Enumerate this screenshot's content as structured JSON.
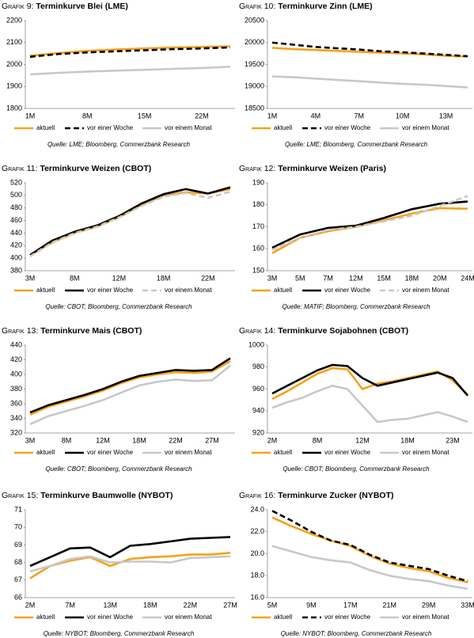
{
  "chart_data": [
    {
      "type": "line",
      "label": "Grafik 9:",
      "title": "Terminkurve Blei (LME)",
      "source": "Quelle: LME; Bloomberg, Commerzbank Research",
      "categories": [
        "1M",
        null,
        "8M",
        null,
        "15M",
        null,
        "22M",
        null
      ],
      "ylim": [
        1800,
        2200
      ],
      "yticks": [
        1800,
        1900,
        2000,
        2100,
        2200
      ],
      "grid": false,
      "series": [
        {
          "name": "aktuell",
          "color": "#f7a11a",
          "dashed": false,
          "values": [
            2040,
            2052,
            2062,
            2068,
            2073,
            2077,
            2080,
            2083
          ]
        },
        {
          "name": "vor einer Woche",
          "color": "#000000",
          "dashed": true,
          "values": [
            2035,
            2048,
            2055,
            2060,
            2065,
            2070,
            2073,
            2078
          ]
        },
        {
          "name": "vor einem Monat",
          "color": "#c8c8c8",
          "dashed": false,
          "values": [
            1955,
            1962,
            1968,
            1972,
            1976,
            1980,
            1984,
            1990
          ]
        }
      ]
    },
    {
      "type": "line",
      "label": "Grafik 10:",
      "title": "Terminkurve Zinn (LME)",
      "source": "Quelle: LME; Bloomberg, Commerzbank Research",
      "categories": [
        "1M",
        null,
        "4M",
        null,
        "7M",
        null,
        "10M",
        null,
        "13M",
        null
      ],
      "ylim": [
        18500,
        20500
      ],
      "yticks": [
        18500,
        19000,
        19500,
        20000,
        20500
      ],
      "grid": false,
      "series": [
        {
          "name": "aktuell",
          "color": "#f7a11a",
          "dashed": false,
          "values": [
            19880,
            19850,
            19830,
            19810,
            19790,
            19770,
            19750,
            19730,
            19700,
            19680
          ]
        },
        {
          "name": "vor einer Woche",
          "color": "#000000",
          "dashed": true,
          "values": [
            20000,
            19950,
            19900,
            19870,
            19840,
            19800,
            19780,
            19750,
            19720,
            19690
          ]
        },
        {
          "name": "vor einem Monat",
          "color": "#c8c8c8",
          "dashed": false,
          "values": [
            19230,
            19210,
            19180,
            19150,
            19120,
            19090,
            19060,
            19040,
            19010,
            18980
          ]
        }
      ]
    },
    {
      "type": "line",
      "label": "Grafik 11:",
      "title": "Terminkurve Weizen (CBOT)",
      "source": "Quelle: CBOT; Bloomberg, Commerzbank Research",
      "categories": [
        "3M",
        null,
        "8M",
        null,
        "12M",
        null,
        "18M",
        null,
        "22M",
        null
      ],
      "ylim": [
        380,
        520
      ],
      "yticks": [
        380,
        400,
        420,
        440,
        460,
        480,
        500,
        520
      ],
      "grid": false,
      "series": [
        {
          "name": "aktuell",
          "color": "#f7a11a",
          "dashed": false,
          "values": [
            405,
            425,
            440,
            450,
            465,
            485,
            500,
            505,
            503,
            510
          ]
        },
        {
          "name": "vor einer Woche",
          "color": "#000000",
          "dashed": false,
          "values": [
            405,
            428,
            442,
            452,
            467,
            487,
            502,
            510,
            503,
            513
          ]
        },
        {
          "name": "vor einem Monat",
          "color": "#c8c8c8",
          "dashed": true,
          "values": [
            403,
            425,
            440,
            450,
            465,
            483,
            498,
            504,
            496,
            506
          ]
        }
      ]
    },
    {
      "type": "line",
      "label": "Grafik 12:",
      "title": "Terminkurve Weizen (Paris)",
      "source": "Quelle: MATIF; Bloomberg, Commerzbank Research",
      "categories": [
        "3M",
        "5M",
        "7M",
        "12M",
        "15M",
        "18M",
        "20M",
        "24M"
      ],
      "ylim": [
        150,
        190
      ],
      "yticks": [
        150,
        160,
        170,
        180,
        190
      ],
      "grid": false,
      "series": [
        {
          "name": "aktuell",
          "color": "#f7a11a",
          "dashed": false,
          "values": [
            158,
            165,
            168,
            170,
            173,
            176,
            178.5,
            178.2
          ]
        },
        {
          "name": "vor einer Woche",
          "color": "#000000",
          "dashed": false,
          "values": [
            160.5,
            166.5,
            169.5,
            170.5,
            174,
            178,
            180.5,
            181.5
          ]
        },
        {
          "name": "vor einem Monat",
          "color": "#c8c8c8",
          "dashed": true,
          "values": [
            159.5,
            165,
            168.5,
            170,
            172.5,
            175,
            179.5,
            184
          ]
        }
      ]
    },
    {
      "type": "line",
      "label": "Grafik 13:",
      "title": "Terminkurve Mais (CBOT)",
      "source": "Quelle: CBOT; Bloomberg, Commerzbank Research",
      "categories": [
        "3M",
        null,
        "8M",
        null,
        "12M",
        null,
        "18M",
        null,
        "22M",
        null,
        "27M",
        null
      ],
      "ylim": [
        320,
        440
      ],
      "yticks": [
        320,
        340,
        360,
        380,
        400,
        420,
        440
      ],
      "grid": false,
      "series": [
        {
          "name": "aktuell",
          "color": "#f7a11a",
          "dashed": false,
          "values": [
            345,
            356,
            363,
            370,
            378,
            388,
            396,
            400,
            403,
            402,
            404,
            418
          ]
        },
        {
          "name": "vor einer Woche",
          "color": "#000000",
          "dashed": false,
          "values": [
            348,
            358,
            365,
            372,
            380,
            390,
            398,
            402,
            406,
            405,
            406,
            422
          ]
        },
        {
          "name": "vor einem Monat",
          "color": "#c8c8c8",
          "dashed": false,
          "values": [
            332,
            343,
            350,
            357,
            365,
            375,
            385,
            390,
            393,
            391,
            392,
            412
          ]
        }
      ]
    },
    {
      "type": "line",
      "label": "Grafik 14:",
      "title": "Terminkurve Sojabohnen (CBOT)",
      "source": "Quelle: CBOT; Bloomberg, Commerzbank Research",
      "categories": [
        "2M",
        null,
        null,
        "8M",
        null,
        null,
        "12M",
        null,
        null,
        "18M",
        null,
        null,
        "23M",
        null
      ],
      "ylim": [
        920,
        1000
      ],
      "yticks": [
        920,
        940,
        960,
        980,
        1000
      ],
      "grid": false,
      "series": [
        {
          "name": "aktuell",
          "color": "#f7a11a",
          "dashed": false,
          "values": [
            951,
            958,
            966,
            974,
            979,
            978,
            960,
            965,
            967,
            970,
            973,
            976,
            968,
            955
          ]
        },
        {
          "name": "vor einer Woche",
          "color": "#000000",
          "dashed": false,
          "values": [
            956,
            963,
            970,
            977,
            982,
            981,
            970,
            963,
            966,
            969,
            972,
            975,
            970,
            954
          ]
        },
        {
          "name": "vor einem Monat",
          "color": "#c8c8c8",
          "dashed": false,
          "values": [
            943,
            948,
            952,
            958,
            963,
            960,
            945,
            930,
            932,
            933,
            936,
            939,
            935,
            930
          ]
        }
      ]
    },
    {
      "type": "line",
      "label": "Grafik 15:",
      "title": "Terminkurve Baumwolle (NYBOT)",
      "source": "Quelle: NYBOT; Bloomberg, Commerzbank Research",
      "categories": [
        "2M",
        null,
        "7M",
        null,
        "13M",
        null,
        "18M",
        null,
        "22M",
        null,
        "27M"
      ],
      "ylim": [
        66,
        71
      ],
      "yticks": [
        66,
        67,
        68,
        69,
        70,
        71
      ],
      "grid": false,
      "series": [
        {
          "name": "aktuell",
          "color": "#f7a11a",
          "dashed": false,
          "values": [
            67.1,
            67.8,
            68.1,
            68.3,
            67.8,
            68.2,
            68.3,
            68.35,
            68.45,
            68.45,
            68.55
          ]
        },
        {
          "name": "vor einer Woche",
          "color": "#000000",
          "dashed": false,
          "values": [
            67.8,
            68.3,
            68.8,
            68.85,
            68.3,
            68.95,
            69.05,
            69.2,
            69.35,
            69.4,
            69.45
          ]
        },
        {
          "name": "vor einem Monat",
          "color": "#c8c8c8",
          "dashed": false,
          "values": [
            67.5,
            67.8,
            68.2,
            68.35,
            68.0,
            68.05,
            68.05,
            68.0,
            68.25,
            68.3,
            68.35
          ]
        }
      ]
    },
    {
      "type": "line",
      "label": "Grafik 16:",
      "title": "Terminkurve Zucker (NYBOT)",
      "source": "Quelle: NYBOT; Bloomberg, Commerzbank Research",
      "categories": [
        "5M",
        null,
        "9M",
        null,
        "17M",
        null,
        "21M",
        null,
        "29M",
        null,
        "33M"
      ],
      "ylim": [
        16,
        24
      ],
      "yticks": [
        {
          "value": 16,
          "label": "16.0"
        },
        {
          "value": 18,
          "label": "18.0"
        },
        {
          "value": 20,
          "label": "20.0"
        },
        {
          "value": 22,
          "label": "22.0"
        },
        {
          "value": 24,
          "label": "24.0"
        }
      ],
      "grid": false,
      "series": [
        {
          "name": "aktuell",
          "color": "#f7a11a",
          "dashed": false,
          "values": [
            23.3,
            22.5,
            21.8,
            21.2,
            20.7,
            19.8,
            19.1,
            18.7,
            18.4,
            17.8,
            17.4
          ]
        },
        {
          "name": "vor einer Woche",
          "color": "#000000",
          "dashed": true,
          "values": [
            23.9,
            23.0,
            22.0,
            21.2,
            20.8,
            19.9,
            19.2,
            18.9,
            18.6,
            18.0,
            17.5
          ]
        },
        {
          "name": "vor einem Monat",
          "color": "#c8c8c8",
          "dashed": false,
          "values": [
            20.7,
            20.2,
            19.7,
            19.4,
            19.2,
            18.5,
            18.0,
            17.7,
            17.5,
            17.1,
            16.8
          ]
        }
      ]
    }
  ]
}
